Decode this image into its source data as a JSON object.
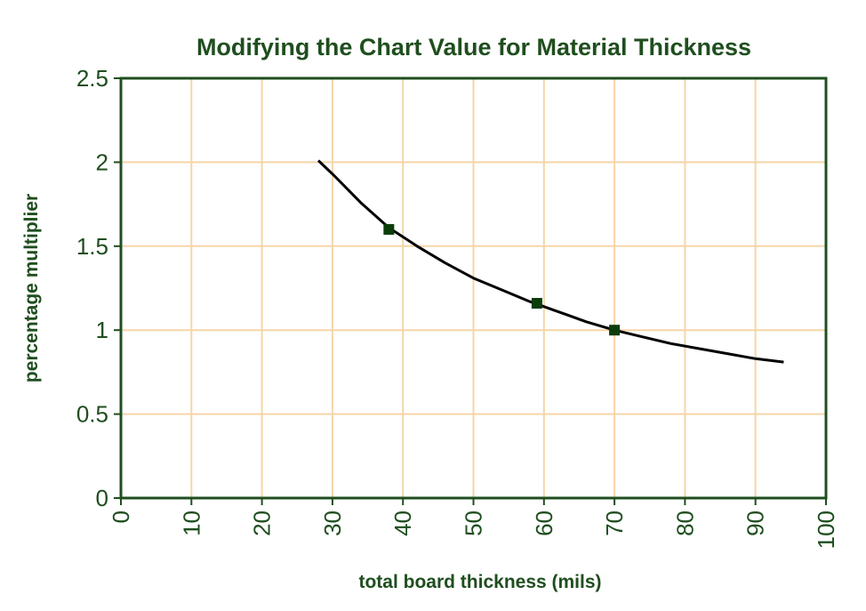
{
  "chart_data": {
    "type": "line",
    "title": "Modifying the Chart Value for Material Thickness",
    "xlabel": "total board thickness (mils)",
    "ylabel": "percentage multiplier",
    "xlim": [
      0,
      100
    ],
    "ylim": [
      0,
      2.5
    ],
    "x_ticks": [
      "0",
      "10",
      "20",
      "30",
      "40",
      "50",
      "60",
      "70",
      "80",
      "90",
      "100"
    ],
    "y_ticks": [
      "0",
      "0.5",
      "1",
      "1.5",
      "2",
      "2.5"
    ],
    "grid": true,
    "legend": "none",
    "series": [
      {
        "kind": "points",
        "x": [
          38,
          59,
          70
        ],
        "y": [
          1.6,
          1.16,
          1.0
        ]
      },
      {
        "kind": "trendline",
        "x": [
          28,
          30,
          34,
          38,
          42,
          46,
          50,
          54,
          58,
          62,
          66,
          70,
          74,
          78,
          82,
          86,
          90,
          94
        ],
        "y": [
          2.01,
          1.93,
          1.76,
          1.61,
          1.5,
          1.4,
          1.31,
          1.24,
          1.17,
          1.11,
          1.05,
          1.0,
          0.96,
          0.92,
          0.89,
          0.86,
          0.83,
          0.81
        ]
      }
    ],
    "colors": {
      "text": "#1f4e1f",
      "axis": "#1f4e1f",
      "grid": "#f5d5a8",
      "line": "#000000",
      "marker": "#0b3d0b"
    }
  }
}
